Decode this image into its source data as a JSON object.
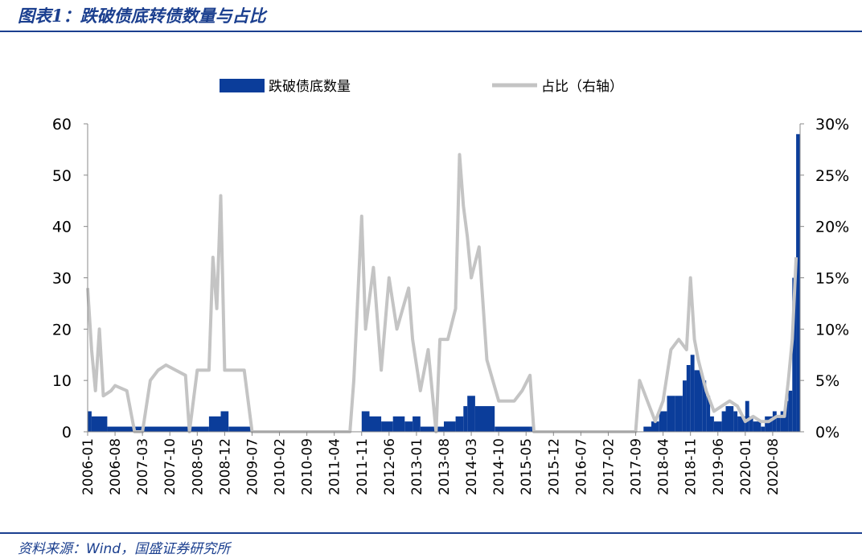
{
  "header": {
    "title": "图表1：跌破债底转债数量与占比"
  },
  "footer": {
    "source": "资料来源：Wind，国盛证券研究所"
  },
  "colors": {
    "bars": "#0b3d9a",
    "line": "#c4c4c4",
    "title": "#1b3f8f",
    "axis": "#888888"
  },
  "chart_data": {
    "type": "bar",
    "title": "图表1：跌破债底转债数量与占比",
    "x_ticks": [
      "2006-01",
      "2006-08",
      "2007-03",
      "2007-10",
      "2008-05",
      "2008-12",
      "2009-07",
      "2010-02",
      "2010-09",
      "2011-04",
      "2011-11",
      "2012-06",
      "2013-01",
      "2013-08",
      "2014-03",
      "2014-10",
      "2015-05",
      "2015-12",
      "2016-07",
      "2017-02",
      "2017-09",
      "2018-04",
      "2018-11",
      "2019-06",
      "2020-01",
      "2020-08"
    ],
    "y_left": {
      "min": 0,
      "max": 60,
      "ticks": [
        "0",
        "10",
        "20",
        "30",
        "40",
        "50",
        "60"
      ]
    },
    "y_right": {
      "min": 0,
      "max": 30,
      "ticks": [
        "0%",
        "5%",
        "10%",
        "15%",
        "20%",
        "25%",
        "30%"
      ]
    },
    "legend": {
      "position": "top",
      "bar_label": "跌破债底数量",
      "line_label": "占比（右轴）"
    },
    "series": [
      {
        "name": "跌破债底数量",
        "kind": "bar",
        "axis": "left",
        "points": [
          [
            "2006-01",
            4
          ],
          [
            "2006-02",
            3
          ],
          [
            "2006-05",
            3
          ],
          [
            "2006-06",
            1
          ],
          [
            "2008-08",
            3
          ],
          [
            "2008-11",
            4
          ],
          [
            "2009-01",
            1
          ],
          [
            "2009-07",
            0
          ],
          [
            "2011-09",
            0
          ],
          [
            "2011-11",
            4
          ],
          [
            "2012-01",
            3
          ],
          [
            "2012-04",
            2
          ],
          [
            "2012-07",
            3
          ],
          [
            "2012-10",
            2
          ],
          [
            "2012-12",
            3
          ],
          [
            "2013-02",
            1
          ],
          [
            "2013-08",
            2
          ],
          [
            "2013-11",
            3
          ],
          [
            "2014-01",
            5
          ],
          [
            "2014-02",
            7
          ],
          [
            "2014-04",
            5
          ],
          [
            "2014-07",
            5
          ],
          [
            "2014-09",
            1
          ],
          [
            "2015-06",
            1
          ],
          [
            "2015-07",
            0
          ],
          [
            "2017-10",
            0
          ],
          [
            "2017-11",
            1
          ],
          [
            "2018-01",
            2
          ],
          [
            "2018-03",
            4
          ],
          [
            "2018-05",
            7
          ],
          [
            "2018-07",
            7
          ],
          [
            "2018-09",
            10
          ],
          [
            "2018-10",
            13
          ],
          [
            "2018-11",
            15
          ],
          [
            "2018-12",
            12
          ],
          [
            "2019-02",
            10
          ],
          [
            "2019-03",
            7
          ],
          [
            "2019-04",
            3
          ],
          [
            "2019-05",
            2
          ],
          [
            "2019-07",
            4
          ],
          [
            "2019-08",
            5
          ],
          [
            "2019-10",
            4
          ],
          [
            "2019-11",
            3
          ],
          [
            "2020-01",
            6
          ],
          [
            "2020-02",
            3
          ],
          [
            "2020-03",
            2
          ],
          [
            "2020-05",
            1
          ],
          [
            "2020-06",
            3
          ],
          [
            "2020-08",
            4
          ],
          [
            "2020-09",
            3
          ],
          [
            "2020-10",
            4
          ],
          [
            "2020-11",
            6
          ],
          [
            "2020-12",
            8
          ],
          [
            "2021-01",
            30
          ],
          [
            "2021-02",
            58
          ]
        ]
      },
      {
        "name": "占比（右轴）",
        "kind": "line",
        "axis": "right",
        "points": [
          [
            "2006-01",
            14
          ],
          [
            "2006-02",
            8
          ],
          [
            "2006-03",
            4
          ],
          [
            "2006-04",
            10
          ],
          [
            "2006-05",
            3.5
          ],
          [
            "2006-07",
            4
          ],
          [
            "2006-08",
            4.5
          ],
          [
            "2006-11",
            4
          ],
          [
            "2007-01",
            0
          ],
          [
            "2007-03",
            0
          ],
          [
            "2007-05",
            5
          ],
          [
            "2007-07",
            6
          ],
          [
            "2007-09",
            6.5
          ],
          [
            "2008-02",
            5.5
          ],
          [
            "2008-03",
            0
          ],
          [
            "2008-05",
            6
          ],
          [
            "2008-08",
            6
          ],
          [
            "2008-09",
            17
          ],
          [
            "2008-10",
            12
          ],
          [
            "2008-11",
            23
          ],
          [
            "2008-12",
            6
          ],
          [
            "2009-05",
            6
          ],
          [
            "2009-07",
            0
          ],
          [
            "2011-08",
            0
          ],
          [
            "2011-09",
            5
          ],
          [
            "2011-11",
            21
          ],
          [
            "2011-12",
            10
          ],
          [
            "2012-02",
            16
          ],
          [
            "2012-04",
            6
          ],
          [
            "2012-06",
            15
          ],
          [
            "2012-08",
            10
          ],
          [
            "2012-11",
            14
          ],
          [
            "2012-12",
            9
          ],
          [
            "2013-02",
            4
          ],
          [
            "2013-04",
            8
          ],
          [
            "2013-06",
            0
          ],
          [
            "2013-07",
            9
          ],
          [
            "2013-09",
            9
          ],
          [
            "2013-11",
            12
          ],
          [
            "2013-12",
            27
          ],
          [
            "2014-01",
            22
          ],
          [
            "2014-02",
            19
          ],
          [
            "2014-03",
            15
          ],
          [
            "2014-05",
            18
          ],
          [
            "2014-07",
            7
          ],
          [
            "2014-10",
            3
          ],
          [
            "2015-02",
            3
          ],
          [
            "2015-04",
            4
          ],
          [
            "2015-06",
            5.5
          ],
          [
            "2015-07",
            0
          ],
          [
            "2017-09",
            0
          ],
          [
            "2017-10",
            5
          ],
          [
            "2017-12",
            3
          ],
          [
            "2018-02",
            1
          ],
          [
            "2018-04",
            3
          ],
          [
            "2018-06",
            8
          ],
          [
            "2018-08",
            9
          ],
          [
            "2018-10",
            8
          ],
          [
            "2018-11",
            15
          ],
          [
            "2018-12",
            9
          ],
          [
            "2019-01",
            7
          ],
          [
            "2019-03",
            4
          ],
          [
            "2019-05",
            2
          ],
          [
            "2019-07",
            2.5
          ],
          [
            "2019-09",
            3
          ],
          [
            "2019-11",
            2.5
          ],
          [
            "2020-01",
            1
          ],
          [
            "2020-03",
            1.5
          ],
          [
            "2020-05",
            1
          ],
          [
            "2020-07",
            1
          ],
          [
            "2020-09",
            1.5
          ],
          [
            "2020-11",
            1.5
          ],
          [
            "2020-12",
            5
          ],
          [
            "2021-01",
            9
          ],
          [
            "2021-02",
            17
          ]
        ]
      }
    ]
  }
}
